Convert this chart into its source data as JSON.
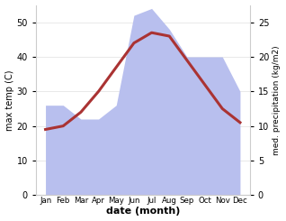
{
  "months": [
    "Jan",
    "Feb",
    "Mar",
    "Apr",
    "May",
    "Jun",
    "Jul",
    "Aug",
    "Sep",
    "Oct",
    "Nov",
    "Dec"
  ],
  "temp": [
    19,
    20,
    24,
    30,
    37,
    44,
    47,
    46,
    39,
    32,
    25,
    21
  ],
  "precip": [
    13,
    13,
    11,
    11,
    13,
    26,
    27,
    24,
    20,
    20,
    20,
    15
  ],
  "temp_color": "#aa3333",
  "precip_color_fill": "#b8bfee",
  "xlabel": "date (month)",
  "ylabel_left": "max temp (C)",
  "ylabel_right": "med. precipitation (kg/m2)",
  "ylim_left": [
    0,
    55
  ],
  "ylim_right": [
    0,
    27.5
  ],
  "yticks_left": [
    0,
    10,
    20,
    30,
    40,
    50
  ],
  "yticks_right": [
    0,
    5,
    10,
    15,
    20,
    25
  ],
  "precip_scale": 2.0,
  "bg_color": "#ffffff",
  "line_width": 2.2,
  "spine_color": "#cccccc"
}
